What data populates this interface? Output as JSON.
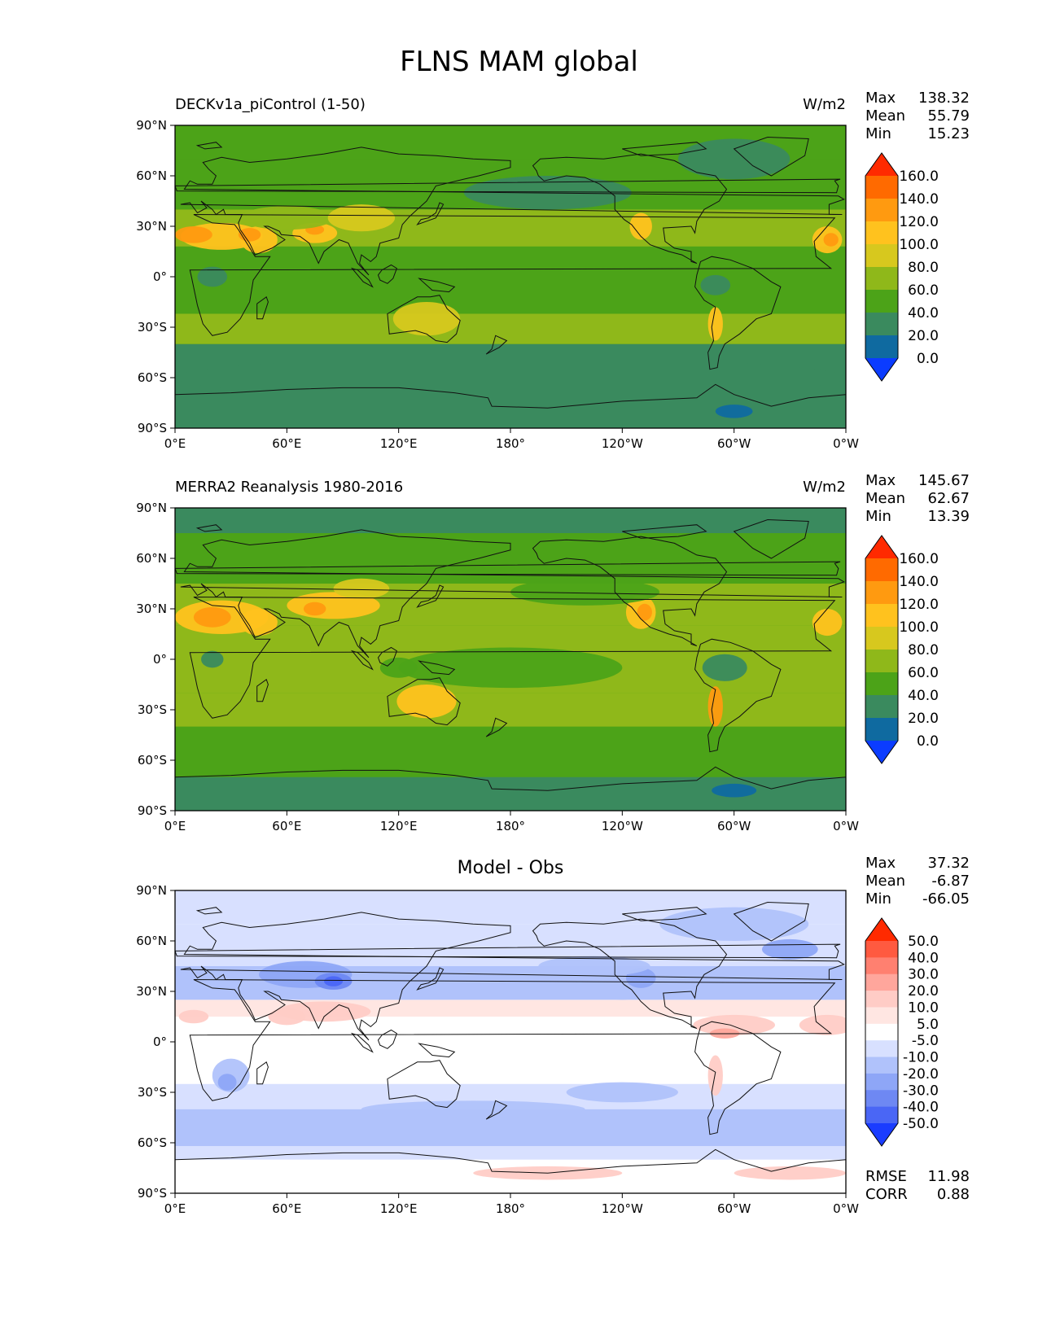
{
  "figure": {
    "title": "FLNS MAM global"
  },
  "axes": {
    "lon_ticks": [
      "0°E",
      "60°E",
      "120°E",
      "180°",
      "120°W",
      "60°W",
      "0°W"
    ],
    "lat_ticks": [
      "90°N",
      "60°N",
      "30°N",
      "0°",
      "30°S",
      "60°S",
      "90°S"
    ]
  },
  "panels": [
    {
      "id": "model",
      "title": "DECKv1a_piControl (1-50)",
      "title_position": "left",
      "units": "W/m2",
      "stats": {
        "max_label": "Max",
        "max": "138.32",
        "mean_label": "Mean",
        "mean": "55.79",
        "min_label": "Min",
        "min": "15.23"
      },
      "colorbar": {
        "levels": [
          "160.0",
          "140.0",
          "120.0",
          "100.0",
          "80.0",
          "60.0",
          "40.0",
          "20.0",
          "0.0"
        ],
        "colors": [
          "#ff2a00",
          "#ff6a00",
          "#ff9a10",
          "#ffc21e",
          "#d7c81e",
          "#8fb81a",
          "#4ca318",
          "#3a8a5e",
          "#0f6aa0",
          "#0b3cff"
        ]
      }
    },
    {
      "id": "obs",
      "title": "MERRA2 Reanalysis 1980-2016",
      "title_position": "left",
      "units": "W/m2",
      "stats": {
        "max_label": "Max",
        "max": "145.67",
        "mean_label": "Mean",
        "mean": "62.67",
        "min_label": "Min",
        "min": "13.39"
      },
      "colorbar": {
        "levels": [
          "160.0",
          "140.0",
          "120.0",
          "100.0",
          "80.0",
          "60.0",
          "40.0",
          "20.0",
          "0.0"
        ],
        "colors": [
          "#ff2a00",
          "#ff6a00",
          "#ff9a10",
          "#ffc21e",
          "#d7c81e",
          "#8fb81a",
          "#4ca318",
          "#3a8a5e",
          "#0f6aa0",
          "#0b3cff"
        ]
      }
    },
    {
      "id": "diff",
      "title": "Model - Obs",
      "title_position": "center",
      "units": "",
      "stats": {
        "max_label": "Max",
        "max": "37.32",
        "mean_label": "Mean",
        "mean": "-6.87",
        "min_label": "Min",
        "min": "-66.05"
      },
      "colorbar": {
        "levels": [
          "50.0",
          "40.0",
          "30.0",
          "20.0",
          "10.0",
          "5.0",
          "-5.0",
          "-10.0",
          "-20.0",
          "-30.0",
          "-40.0",
          "-50.0"
        ],
        "colors": [
          "#ff2a00",
          "#ff5a40",
          "#ff8070",
          "#ffa69c",
          "#ffccc6",
          "#ffe6e2",
          "#ffffff",
          "#d8e0ff",
          "#b0c2fb",
          "#8ea6f7",
          "#6e88f3",
          "#4a66f5",
          "#1a3cff"
        ]
      },
      "extra_stats": {
        "rmse_label": "RMSE",
        "rmse": "11.98",
        "corr_label": "CORR",
        "corr": "0.88"
      }
    }
  ],
  "colors": {
    "land_outline": "#111111",
    "frame": "#000000"
  }
}
